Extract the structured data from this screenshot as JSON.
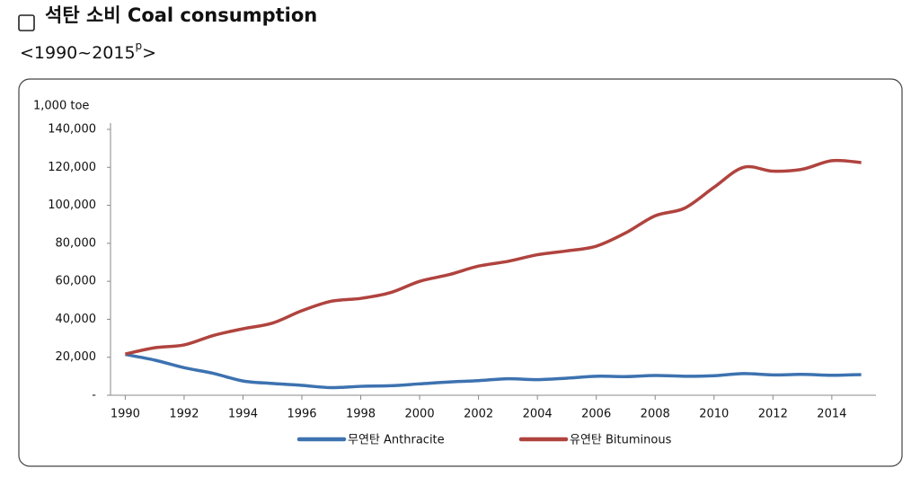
{
  "header": {
    "title": "석탄 소비 Coal consumption",
    "subtitle": {
      "text": "<1990~2015",
      "superscript": "p",
      "suffix": ">"
    }
  },
  "chart_data": {
    "type": "line",
    "y_label": "1,000 toe",
    "x": [
      1990,
      1991,
      1992,
      1993,
      1994,
      1995,
      1996,
      1997,
      1998,
      1999,
      2000,
      2001,
      2002,
      2003,
      2004,
      2005,
      2006,
      2007,
      2008,
      2009,
      2010,
      2011,
      2012,
      2013,
      2014,
      2015
    ],
    "xlim": [
      1989.5,
      2015.5
    ],
    "xticks": [
      1990,
      1992,
      1994,
      1996,
      1998,
      2000,
      2002,
      2004,
      2006,
      2008,
      2010,
      2012,
      2014
    ],
    "ylim": [
      0,
      140000
    ],
    "yticks": [
      {
        "value": 0,
        "label": "-"
      },
      {
        "value": 20000,
        "label": "20,000"
      },
      {
        "value": 40000,
        "label": "40,000"
      },
      {
        "value": 60000,
        "label": "60,000"
      },
      {
        "value": 80000,
        "label": "80,000"
      },
      {
        "value": 100000,
        "label": "100,000"
      },
      {
        "value": 120000,
        "label": "120,000"
      },
      {
        "value": 140000,
        "label": "140,000"
      }
    ],
    "grid": false,
    "series": [
      {
        "name": "무연탄 Anthracite",
        "color": "#3d72b0",
        "values": [
          21500,
          18500,
          14500,
          11500,
          7500,
          6200,
          5200,
          4000,
          4700,
          5000,
          6000,
          7000,
          7700,
          8700,
          8200,
          9000,
          10000,
          9800,
          10400,
          10000,
          10300,
          11400,
          10700,
          11000,
          10500,
          10900
        ]
      },
      {
        "name": "유연탄 Bituminous",
        "color": "#b0433e",
        "values": [
          21700,
          25000,
          26500,
          31500,
          35000,
          38000,
          44500,
          49500,
          51000,
          54000,
          60000,
          63500,
          68000,
          70500,
          74000,
          76000,
          78500,
          85500,
          94500,
          98500,
          109500,
          120000,
          118000,
          119000,
          123500,
          122500
        ]
      }
    ]
  }
}
